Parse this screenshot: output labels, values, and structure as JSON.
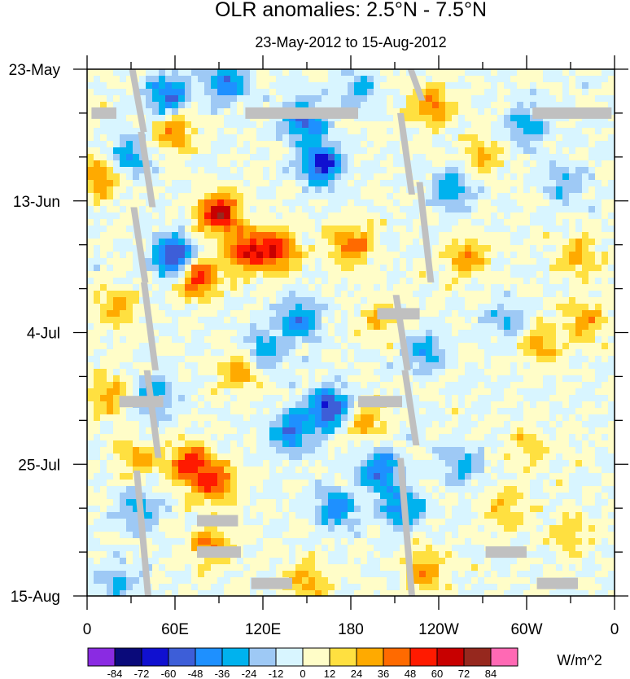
{
  "chart_data": {
    "type": "heatmap",
    "title": "OLR anomalies: 2.5°N - 7.5°N",
    "subtitle": "23-May-2012 to 15-Aug-2012",
    "xlabel": "",
    "ylabel": "",
    "x_ticks": [
      {
        "lon": 0,
        "label": "0"
      },
      {
        "lon": 60,
        "label": "60E"
      },
      {
        "lon": 120,
        "label": "120E"
      },
      {
        "lon": 180,
        "label": "180"
      },
      {
        "lon": 240,
        "label": "120W"
      },
      {
        "lon": 300,
        "label": "60W"
      },
      {
        "lon": 360,
        "label": "0"
      }
    ],
    "xlim": [
      0,
      360
    ],
    "y_ticks": [
      {
        "day": 0,
        "label": "23-May"
      },
      {
        "day": 21,
        "label": "13-Jun"
      },
      {
        "day": 42,
        "label": "4-Jul"
      },
      {
        "day": 63,
        "label": "25-Jul"
      },
      {
        "day": 84,
        "label": "15-Aug"
      }
    ],
    "ylim_days": [
      0,
      84
    ],
    "y_direction": "time increases downward",
    "colorbar": {
      "units": "W/m^2",
      "levels": [
        -84,
        -72,
        -60,
        -48,
        -36,
        -24,
        -12,
        0,
        12,
        24,
        36,
        48,
        60,
        72,
        84
      ],
      "colors": [
        "#8a2be2",
        "#0a0a7a",
        "#1010d0",
        "#3d5ed8",
        "#1e90ff",
        "#00b2ee",
        "#9ec9f5",
        "#d8f5ff",
        "#fffdc8",
        "#ffe040",
        "#ffaa00",
        "#ff6a00",
        "#ff1a00",
        "#c80000",
        "#96281e",
        "#ff69b4"
      ]
    },
    "hotspots": [
      {
        "lon": 90,
        "day": 23,
        "value": 70
      },
      {
        "lon": 75,
        "day": 33,
        "value": 60
      },
      {
        "lon": 110,
        "day": 29,
        "value": 55
      },
      {
        "lon": 130,
        "day": 29,
        "value": 50
      },
      {
        "lon": 235,
        "day": 6,
        "value": 38
      },
      {
        "lon": 180,
        "day": 28,
        "value": 42
      },
      {
        "lon": 70,
        "day": 63,
        "value": 55
      },
      {
        "lon": 88,
        "day": 66,
        "value": 48
      },
      {
        "lon": 85,
        "day": 76,
        "value": 40
      },
      {
        "lon": 10,
        "day": 17,
        "value": 40
      },
      {
        "lon": 260,
        "day": 30,
        "value": 34
      },
      {
        "lon": 310,
        "day": 44,
        "value": 30
      },
      {
        "lon": 340,
        "day": 40,
        "value": 32
      },
      {
        "lon": 335,
        "day": 30,
        "value": 28
      },
      {
        "lon": 230,
        "day": 80,
        "value": 32
      },
      {
        "lon": 15,
        "day": 52,
        "value": 30
      },
      {
        "lon": 190,
        "day": 56,
        "value": 30
      },
      {
        "lon": 330,
        "day": 74,
        "value": 22
      },
      {
        "lon": 150,
        "day": 82,
        "value": 30
      },
      {
        "lon": 105,
        "day": 48,
        "value": 38
      },
      {
        "lon": 60,
        "day": 10,
        "value": 36
      },
      {
        "lon": 300,
        "day": 60,
        "value": 20
      },
      {
        "lon": 35,
        "day": 62,
        "value": 28
      },
      {
        "lon": 20,
        "day": 38,
        "value": 30
      },
      {
        "lon": 270,
        "day": 14,
        "value": 26
      },
      {
        "lon": 200,
        "day": 40,
        "value": 24
      },
      {
        "lon": 285,
        "day": 70,
        "value": 24
      },
      {
        "lon": 60,
        "day": 30,
        "value": -72
      },
      {
        "lon": 160,
        "day": 15,
        "value": -65
      },
      {
        "lon": 165,
        "day": 54,
        "value": -65
      },
      {
        "lon": 148,
        "day": 8,
        "value": -55
      },
      {
        "lon": 55,
        "day": 4,
        "value": -50
      },
      {
        "lon": 200,
        "day": 64,
        "value": -50
      },
      {
        "lon": 145,
        "day": 40,
        "value": -45
      },
      {
        "lon": 140,
        "day": 58,
        "value": -48
      },
      {
        "lon": 215,
        "day": 70,
        "value": -45
      },
      {
        "lon": 95,
        "day": 2,
        "value": -45
      },
      {
        "lon": 28,
        "day": 14,
        "value": -40
      },
      {
        "lon": 250,
        "day": 19,
        "value": -35
      },
      {
        "lon": 300,
        "day": 9,
        "value": -30
      },
      {
        "lon": 230,
        "day": 45,
        "value": -34
      },
      {
        "lon": 120,
        "day": 45,
        "value": -36
      },
      {
        "lon": 45,
        "day": 52,
        "value": -36
      },
      {
        "lon": 35,
        "day": 70,
        "value": -32
      },
      {
        "lon": 170,
        "day": 70,
        "value": -40
      },
      {
        "lon": 255,
        "day": 63,
        "value": -30
      },
      {
        "lon": 325,
        "day": 18,
        "value": -26
      },
      {
        "lon": 20,
        "day": 82,
        "value": -28
      },
      {
        "lon": 285,
        "day": 40,
        "value": -26
      },
      {
        "lon": 185,
        "day": 3,
        "value": -24
      }
    ],
    "missing_segments": [
      {
        "lon1": 3,
        "lon2": 20,
        "day": 7
      },
      {
        "lon1": 108,
        "lon2": 185,
        "day": 7
      },
      {
        "lon1": 304,
        "lon2": 358,
        "day": 7
      },
      {
        "lon1": 198,
        "lon2": 227,
        "day": 39
      },
      {
        "lon1": 22,
        "lon2": 52,
        "day": 53
      },
      {
        "lon1": 185,
        "lon2": 215,
        "day": 53
      },
      {
        "lon1": 75,
        "lon2": 103,
        "day": 72
      },
      {
        "lon1": 75,
        "lon2": 105,
        "day": 77
      },
      {
        "lon1": 272,
        "lon2": 300,
        "day": 77
      },
      {
        "lon1": 112,
        "lon2": 140,
        "day": 82
      },
      {
        "lon1": 307,
        "lon2": 335,
        "day": 82
      }
    ],
    "missing_streaks": [
      {
        "lon": 32,
        "day1": 0,
        "day2": 10
      },
      {
        "lon": 38,
        "day1": 10,
        "day2": 22
      },
      {
        "lon": 33,
        "day1": 22,
        "day2": 34
      },
      {
        "lon": 40,
        "day1": 34,
        "day2": 48
      },
      {
        "lon": 42,
        "day1": 48,
        "day2": 62
      },
      {
        "lon": 35,
        "day1": 64,
        "day2": 84
      },
      {
        "lon": 222,
        "day1": 0,
        "day2": 5
      },
      {
        "lon": 215,
        "day1": 7,
        "day2": 20
      },
      {
        "lon": 228,
        "day1": 18,
        "day2": 34
      },
      {
        "lon": 212,
        "day1": 36,
        "day2": 48
      },
      {
        "lon": 218,
        "day1": 48,
        "day2": 60
      },
      {
        "lon": 215,
        "day1": 62,
        "day2": 84
      }
    ]
  }
}
